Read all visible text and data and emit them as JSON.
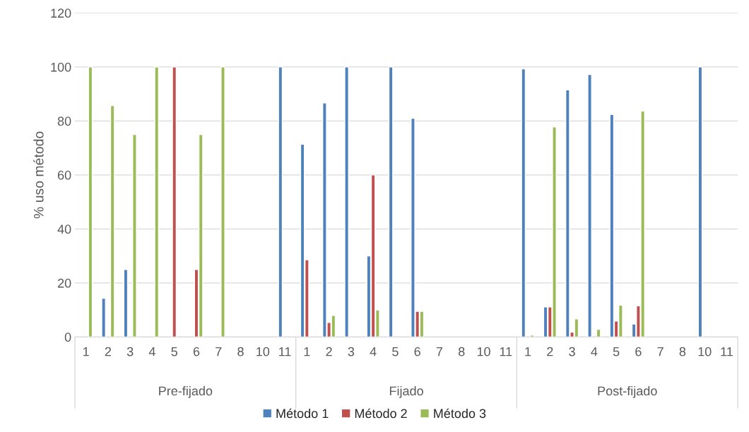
{
  "chart_data": {
    "type": "bar",
    "ylabel": "% uso método",
    "categories": [
      "1",
      "2",
      "3",
      "4",
      "5",
      "6",
      "7",
      "8",
      "10",
      "11",
      "1",
      "2",
      "3",
      "4",
      "5",
      "6",
      "7",
      "8",
      "10",
      "11",
      "1",
      "2",
      "3",
      "4",
      "5",
      "6",
      "7",
      "8",
      "10",
      "11"
    ],
    "series": [
      {
        "name": "Método 1",
        "color": "#4f81bd",
        "values": [
          null,
          14.3,
          25,
          null,
          null,
          null,
          null,
          null,
          null,
          100,
          71.4,
          86.7,
          100,
          30,
          100,
          81,
          null,
          null,
          null,
          null,
          99.3,
          11.1,
          91.5,
          97.2,
          82.4,
          4.8,
          null,
          null,
          100,
          null
        ]
      },
      {
        "name": "Método 2",
        "color": "#c0504d",
        "values": [
          null,
          null,
          null,
          null,
          100,
          25,
          null,
          null,
          null,
          null,
          28.6,
          5.4,
          null,
          60,
          null,
          9.5,
          null,
          null,
          null,
          null,
          null,
          11.1,
          1.8,
          null,
          5.9,
          11.5,
          null,
          null,
          null,
          null
        ]
      },
      {
        "name": "Método 3",
        "color": "#9bbb59",
        "values": [
          100,
          85.7,
          75,
          100,
          null,
          75,
          100,
          null,
          null,
          null,
          null,
          8,
          null,
          10,
          null,
          9.5,
          null,
          null,
          null,
          null,
          0.7,
          77.8,
          6.7,
          2.8,
          11.8,
          83.7,
          null,
          null,
          null,
          null
        ]
      }
    ],
    "annotations": [
      "Pre-fijado",
      "Fijado",
      "Post-fijado"
    ],
    "ylim": [
      0,
      120
    ],
    "yticks": [
      0,
      20,
      40,
      60,
      80,
      100,
      120
    ],
    "grid": "y",
    "legend": "bottom"
  }
}
